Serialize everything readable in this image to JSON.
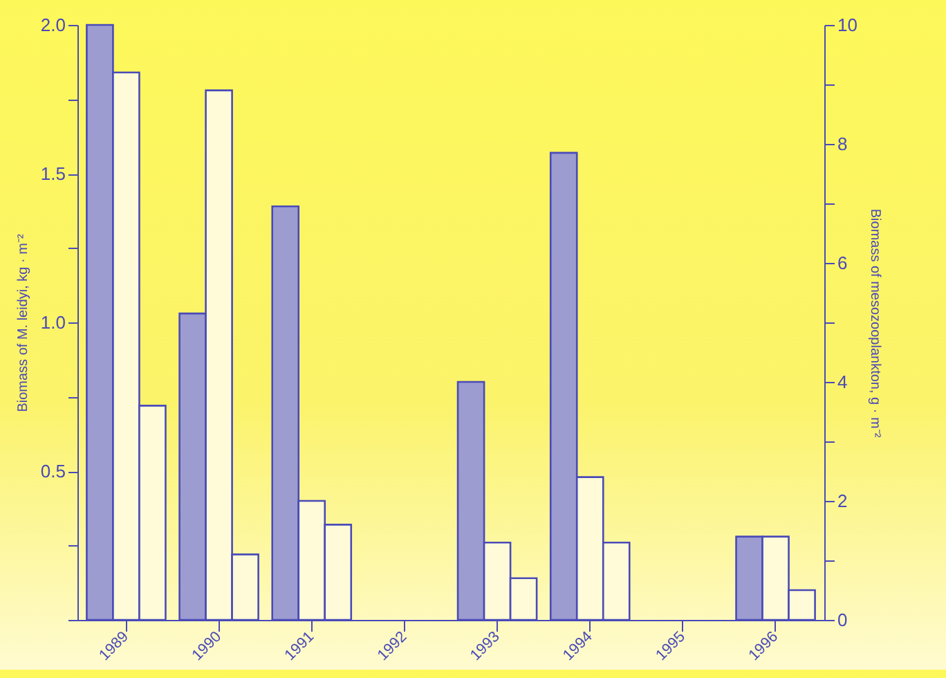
{
  "chart_data": {
    "type": "bar",
    "ylabel": "Biomass of M. leidyi, kg · m⁻²",
    "y2label": "Biomass of mesozooplankton, g · m⁻²",
    "categories": [
      "1989",
      "1990",
      "1991",
      "1992",
      "1993",
      "1994",
      "1995",
      "1996"
    ],
    "series": [
      {
        "color": "#9c9cd0",
        "values": [
          2.0,
          1.03,
          1.39,
          null,
          0.8,
          1.57,
          null,
          0.28
        ]
      },
      {
        "color": "#fffbd8",
        "axis": "y2",
        "values": [
          9.2,
          8.9,
          2.0,
          null,
          1.3,
          2.4,
          null,
          1.4
        ]
      },
      {
        "color": "#fffbd8",
        "axis": "y2",
        "values": [
          3.6,
          1.1,
          1.6,
          null,
          0.7,
          1.3,
          null,
          0.5
        ]
      }
    ],
    "ylim": [
      0,
      2.0
    ],
    "yticks": [
      {
        "value": 0,
        "label": null
      },
      {
        "value": 0.25,
        "label": null
      },
      {
        "value": 0.5,
        "label": "0.5"
      },
      {
        "value": 0.75,
        "label": null
      },
      {
        "value": 1.0,
        "label": "1.0"
      },
      {
        "value": 1.25,
        "label": null
      },
      {
        "value": 1.5,
        "label": "1.5"
      },
      {
        "value": 1.75,
        "label": null
      },
      {
        "value": 2.0,
        "label": "2.0"
      }
    ],
    "y2lim": [
      0,
      10
    ],
    "y2ticks": [
      0,
      {
        "value": 1,
        "label": null
      },
      2,
      {
        "value": 3,
        "label": null
      },
      4,
      {
        "value": 5,
        "label": null
      },
      6,
      {
        "value": 7,
        "label": null
      },
      8,
      {
        "value": 9,
        "label": null
      },
      10
    ],
    "grid": false,
    "legend": false
  }
}
